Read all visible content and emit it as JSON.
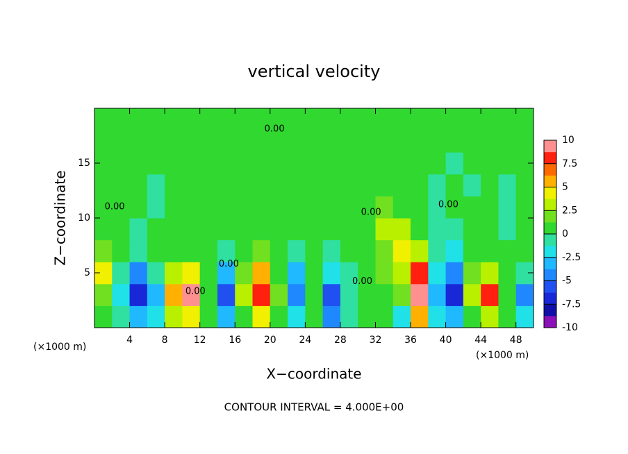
{
  "chart_data": {
    "type": "contour",
    "title": "vertical velocity",
    "xlabel": "X−coordinate",
    "ylabel": "Z−coordinate",
    "x_unit_label": "(×1000 m)",
    "x_unit_label_right": "(×1000 m)",
    "footer": "CONTOUR INTERVAL = 4.000E+00",
    "xlim": [
      0,
      50
    ],
    "ylim": [
      0,
      20
    ],
    "xticks": [
      4,
      8,
      12,
      16,
      20,
      24,
      28,
      32,
      36,
      40,
      44,
      48
    ],
    "yticks": [
      5,
      10,
      15
    ],
    "x": [
      1,
      3,
      5,
      7,
      9,
      11,
      13,
      15,
      17,
      19,
      21,
      23,
      25,
      27,
      29,
      31,
      33,
      35,
      37,
      39,
      41,
      43,
      45,
      47,
      49
    ],
    "z": [
      1,
      3,
      5,
      7,
      9,
      11,
      13,
      15,
      17,
      19
    ],
    "values": [
      [
        1,
        -1,
        -3,
        -2,
        3,
        4,
        0,
        -3,
        1,
        4,
        0,
        -2,
        0,
        -4,
        -1,
        0,
        0,
        -2,
        5,
        -2,
        -3,
        1,
        3,
        0,
        -2
      ],
      [
        2,
        -2,
        -7,
        -3,
        5,
        9,
        0,
        -6,
        3,
        8,
        2,
        -5,
        0,
        -6,
        -1,
        1,
        1,
        2,
        10,
        -3,
        -7,
        3,
        8,
        1,
        -4
      ],
      [
        4,
        -1,
        -4,
        -1,
        3,
        4,
        1,
        -3,
        2,
        6,
        1,
        -3,
        1,
        -2,
        -1,
        1,
        2,
        3,
        8,
        -2,
        -4,
        2,
        3,
        1,
        -1
      ],
      [
        2,
        0,
        -1,
        0,
        1,
        1,
        0,
        -1,
        1,
        2,
        0,
        -1,
        0,
        -1,
        0,
        1,
        2,
        4,
        3,
        -1,
        -2,
        1,
        0,
        0,
        0
      ],
      [
        0,
        1,
        -1,
        0,
        0,
        0,
        0,
        0,
        1,
        1,
        0,
        0,
        0,
        0,
        0,
        1,
        3,
        3,
        1,
        -1,
        -1,
        0,
        0,
        -1,
        0
      ],
      [
        0,
        1,
        0,
        -1,
        0,
        0,
        0,
        0,
        1,
        1,
        0,
        0,
        0,
        0,
        0,
        1,
        2,
        1,
        0,
        -1,
        0,
        0,
        0,
        -1,
        0
      ],
      [
        0,
        0,
        0,
        -1,
        0,
        0,
        0,
        0,
        1,
        0,
        0,
        0,
        0,
        0,
        0,
        1,
        1,
        1,
        0,
        -1,
        0,
        -1,
        0,
        -1,
        0
      ],
      [
        0,
        0,
        0,
        0,
        0,
        0,
        0,
        0,
        0,
        0,
        0,
        0,
        0,
        0,
        0,
        0,
        1,
        1,
        0,
        0,
        -1,
        0,
        0,
        0,
        0
      ],
      [
        0,
        0,
        0,
        0,
        0,
        0,
        0,
        0,
        0,
        0,
        0,
        0,
        0,
        0,
        0,
        0,
        0,
        0,
        0,
        0,
        0,
        0,
        0,
        0,
        0
      ],
      [
        0,
        0,
        0,
        0,
        0,
        0,
        0,
        0,
        0,
        0,
        0,
        0,
        0,
        0,
        0,
        0,
        0,
        0,
        0,
        0,
        0,
        0,
        0,
        0,
        0
      ]
    ],
    "levels": [
      -10,
      -8.75,
      -7.5,
      -6.25,
      -5,
      -3.75,
      -2.5,
      -1.25,
      0,
      1.25,
      2.5,
      3.75,
      5,
      6.25,
      7.5,
      8.75,
      10
    ],
    "colors": [
      "#8a10b8",
      "#1010a8",
      "#1828d8",
      "#2050f0",
      "#2088ff",
      "#20b8ff",
      "#20e0e8",
      "#30e0a0",
      "#30d830",
      "#70e020",
      "#b8f000",
      "#f0f000",
      "#ffb000",
      "#ff6a00",
      "#ff2010",
      "#ff9090"
    ],
    "cbticks": [
      -10,
      -7.5,
      -5,
      -2.5,
      0,
      2.5,
      5,
      7.5,
      10
    ],
    "contour_labels": [
      {
        "text": "0.00",
        "x": 20.5,
        "z": 18.1
      },
      {
        "text": "0.00",
        "x": 2.3,
        "z": 11
      },
      {
        "text": "0.00",
        "x": 15.3,
        "z": 5.8
      },
      {
        "text": "0.00",
        "x": 11.5,
        "z": 3.3
      },
      {
        "text": "0.00",
        "x": 30.5,
        "z": 4.2
      },
      {
        "text": "0.00",
        "x": 31.5,
        "z": 10.5
      },
      {
        "text": "0.00",
        "x": 40.3,
        "z": 11.2
      }
    ]
  }
}
